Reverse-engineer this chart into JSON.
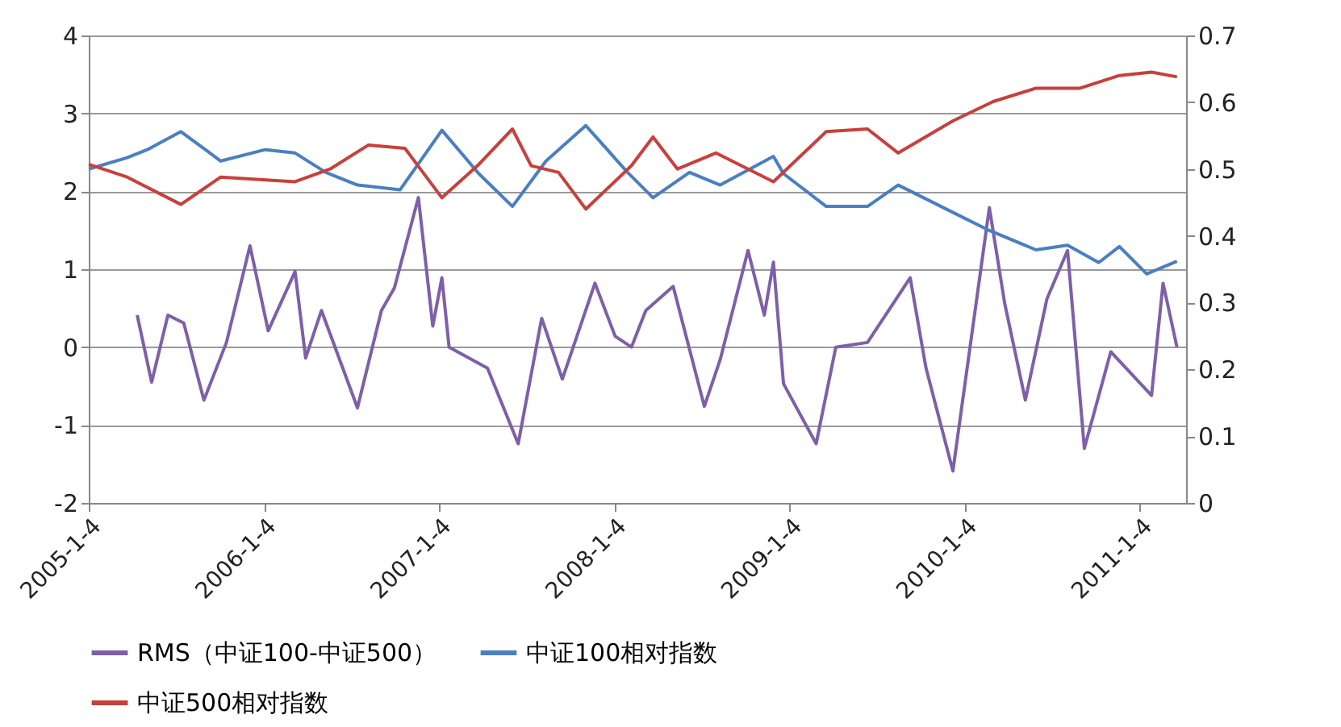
{
  "chart_data": {
    "type": "line",
    "xlim": [
      "2005-01-04",
      "2011-04-10"
    ],
    "xticks": [
      {
        "value": "2005-01-04",
        "label": "2005-1-4"
      },
      {
        "value": "2006-01-04",
        "label": "2006-1-4"
      },
      {
        "value": "2007-01-04",
        "label": "2007-1-4"
      },
      {
        "value": "2008-01-04",
        "label": "2008-1-4"
      },
      {
        "value": "2009-01-04",
        "label": "2009-1-4"
      },
      {
        "value": "2010-01-04",
        "label": "2010-1-4"
      },
      {
        "value": "2011-01-04",
        "label": "2011-1-4"
      }
    ],
    "ylim": [
      -2,
      4
    ],
    "yticks": [
      -2,
      -1,
      0,
      1,
      2,
      3,
      4
    ],
    "y2lim": [
      0,
      0.7
    ],
    "y2ticks": [
      0,
      0.1,
      0.2,
      0.3,
      0.4,
      0.5,
      0.6,
      0.7
    ],
    "grid": "y",
    "legend": "bottom",
    "marker": "none",
    "line_style": "solid",
    "series": [
      {
        "name": "RMS（中证100-中证500）",
        "color": "#7f5fa8",
        "x": [
          "2005-04-15",
          "2005-05-15",
          "2005-06-18",
          "2005-07-21",
          "2005-09-01",
          "2005-10-18",
          "2005-12-06",
          "2006-01-13",
          "2006-03-10",
          "2006-04-01",
          "2006-05-04",
          "2006-07-18",
          "2006-09-06",
          "2006-10-03",
          "2006-11-22",
          "2006-12-22",
          "2007-01-10",
          "2007-01-25",
          "2007-04-15",
          "2007-06-18",
          "2007-08-06",
          "2007-09-18",
          "2007-11-25",
          "2008-01-06",
          "2008-02-09",
          "2008-03-10",
          "2008-05-06",
          "2008-07-10",
          "2008-08-12",
          "2008-10-09",
          "2008-11-12",
          "2008-12-01",
          "2008-12-22",
          "2009-02-28",
          "2009-04-10",
          "2009-06-15",
          "2009-09-12",
          "2009-10-15",
          "2009-12-10",
          "2010-02-24",
          "2010-03-28",
          "2010-05-10",
          "2010-06-24",
          "2010-08-06",
          "2010-09-10",
          "2010-11-04",
          "2011-01-28",
          "2011-02-21",
          "2011-03-22"
        ],
        "values": [
          0.41,
          -0.45,
          0.41,
          0.31,
          -0.68,
          0.06,
          1.3,
          0.21,
          0.97,
          -0.14,
          0.47,
          -0.78,
          0.47,
          0.76,
          1.92,
          0.27,
          0.89,
          0.0,
          -0.27,
          -1.24,
          0.37,
          -0.41,
          0.82,
          0.14,
          0.0,
          0.47,
          0.78,
          -0.76,
          -0.16,
          1.24,
          0.41,
          1.09,
          -0.47,
          -1.24,
          0.0,
          0.06,
          0.89,
          -0.27,
          -1.59,
          1.79,
          0.56,
          -0.68,
          0.62,
          1.24,
          -1.3,
          -0.06,
          -0.62,
          0.82,
          0.0
        ]
      },
      {
        "name": "中证100相对指数",
        "color": "#4a7fc1",
        "axis": "y2",
        "x": [
          "2005-01-04",
          "2005-03-25",
          "2005-05-06",
          "2005-07-15",
          "2005-10-06",
          "2006-01-07",
          "2006-03-10",
          "2006-05-13",
          "2006-07-18",
          "2006-10-15",
          "2007-01-10",
          "2007-03-28",
          "2007-06-06",
          "2007-08-15",
          "2007-11-06",
          "2008-02-01",
          "2008-03-25",
          "2008-06-09",
          "2008-08-12",
          "2008-12-01",
          "2008-12-22",
          "2009-03-21",
          "2009-06-15",
          "2009-08-18",
          "2009-11-15",
          "2010-02-24",
          "2010-06-01",
          "2010-08-06",
          "2010-10-10",
          "2010-11-22",
          "2011-01-18",
          "2011-03-22"
        ],
        "values": [
          0.5,
          0.517,
          0.529,
          0.556,
          0.512,
          0.529,
          0.524,
          0.495,
          0.476,
          0.469,
          0.558,
          0.493,
          0.444,
          0.512,
          0.565,
          0.495,
          0.457,
          0.495,
          0.476,
          0.519,
          0.493,
          0.444,
          0.444,
          0.476,
          0.444,
          0.408,
          0.379,
          0.386,
          0.36,
          0.384,
          0.343,
          0.362
        ]
      },
      {
        "name": "中证500相对指数",
        "color": "#c8403c",
        "axis": "y2",
        "x": [
          "2005-01-04",
          "2005-03-25",
          "2005-07-15",
          "2005-10-06",
          "2006-03-10",
          "2006-05-22",
          "2006-08-10",
          "2006-10-25",
          "2007-01-10",
          "2007-03-28",
          "2007-06-06",
          "2007-07-15",
          "2007-09-10",
          "2007-11-06",
          "2008-02-09",
          "2008-03-25",
          "2008-05-15",
          "2008-08-03",
          "2008-12-01",
          "2009-03-21",
          "2009-06-15",
          "2009-08-18",
          "2009-12-10",
          "2010-03-04",
          "2010-06-01",
          "2010-09-01",
          "2010-11-22",
          "2011-01-28",
          "2011-03-22"
        ],
        "values": [
          0.507,
          0.488,
          0.447,
          0.488,
          0.481,
          0.5,
          0.536,
          0.531,
          0.457,
          0.507,
          0.56,
          0.505,
          0.495,
          0.44,
          0.505,
          0.548,
          0.5,
          0.524,
          0.481,
          0.556,
          0.56,
          0.524,
          0.572,
          0.601,
          0.621,
          0.621,
          0.64,
          0.645,
          0.638
        ]
      }
    ]
  }
}
